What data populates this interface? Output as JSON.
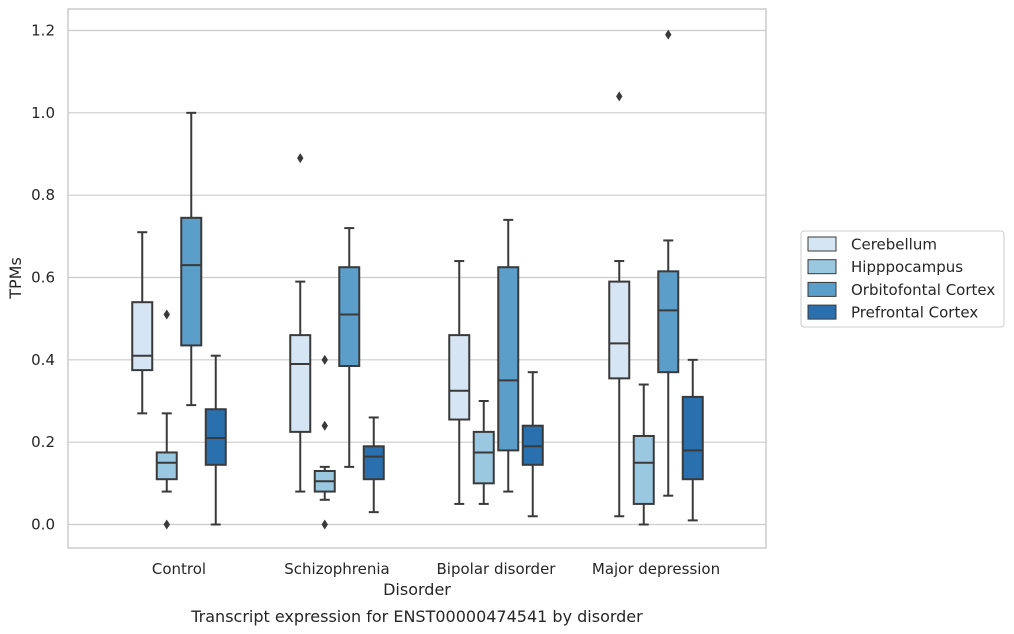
{
  "chart_data": {
    "type": "box",
    "caption": "Transcript expression for ENST00000474541 by disorder",
    "xlabel": "Disorder",
    "ylabel": "TPMs",
    "ylim": [
      -0.055,
      1.25
    ],
    "yticks": [
      0.0,
      0.2,
      0.4,
      0.6,
      0.8,
      1.0,
      1.2
    ],
    "grid": "horizontal",
    "legend_position": "right",
    "categories": [
      "Control",
      "Schizophrenia",
      "Bipolar disorder",
      "Major depression"
    ],
    "series": [
      {
        "name": "Cerebellum",
        "color": "#d6e5f4",
        "boxes": [
          {
            "whislo": 0.27,
            "q1": 0.375,
            "med": 0.41,
            "q3": 0.54,
            "whishi": 0.71,
            "fliers": []
          },
          {
            "whislo": 0.08,
            "q1": 0.225,
            "med": 0.39,
            "q3": 0.46,
            "whishi": 0.59,
            "fliers": [
              0.89
            ]
          },
          {
            "whislo": 0.05,
            "q1": 0.255,
            "med": 0.325,
            "q3": 0.46,
            "whishi": 0.64,
            "fliers": []
          },
          {
            "whislo": 0.02,
            "q1": 0.355,
            "med": 0.44,
            "q3": 0.59,
            "whishi": 0.64,
            "fliers": [
              1.04
            ]
          }
        ]
      },
      {
        "name": "Hipppocampus",
        "color": "#9ac8e0",
        "boxes": [
          {
            "whislo": 0.08,
            "q1": 0.11,
            "med": 0.15,
            "q3": 0.175,
            "whishi": 0.27,
            "fliers": [
              0.0,
              0.51
            ]
          },
          {
            "whislo": 0.06,
            "q1": 0.08,
            "med": 0.105,
            "q3": 0.13,
            "whishi": 0.14,
            "fliers": [
              0.0,
              0.24,
              0.4
            ]
          },
          {
            "whislo": 0.05,
            "q1": 0.1,
            "med": 0.175,
            "q3": 0.225,
            "whishi": 0.3,
            "fliers": []
          },
          {
            "whislo": 0.0,
            "q1": 0.05,
            "med": 0.15,
            "q3": 0.215,
            "whishi": 0.34,
            "fliers": []
          }
        ]
      },
      {
        "name": "Orbitofontal Cortex",
        "color": "#5b9ec9",
        "boxes": [
          {
            "whislo": 0.29,
            "q1": 0.435,
            "med": 0.63,
            "q3": 0.745,
            "whishi": 1.0,
            "fliers": []
          },
          {
            "whislo": 0.14,
            "q1": 0.385,
            "med": 0.51,
            "q3": 0.625,
            "whishi": 0.72,
            "fliers": []
          },
          {
            "whislo": 0.08,
            "q1": 0.18,
            "med": 0.35,
            "q3": 0.625,
            "whishi": 0.74,
            "fliers": []
          },
          {
            "whislo": 0.07,
            "q1": 0.37,
            "med": 0.52,
            "q3": 0.615,
            "whishi": 0.69,
            "fliers": [
              1.19
            ]
          }
        ]
      },
      {
        "name": "Prefrontal Cortex",
        "color": "#2a6fae",
        "boxes": [
          {
            "whislo": 0.0,
            "q1": 0.145,
            "med": 0.21,
            "q3": 0.28,
            "whishi": 0.41,
            "fliers": []
          },
          {
            "whislo": 0.03,
            "q1": 0.11,
            "med": 0.165,
            "q3": 0.19,
            "whishi": 0.26,
            "fliers": []
          },
          {
            "whislo": 0.02,
            "q1": 0.145,
            "med": 0.19,
            "q3": 0.24,
            "whishi": 0.37,
            "fliers": []
          },
          {
            "whislo": 0.01,
            "q1": 0.11,
            "med": 0.18,
            "q3": 0.31,
            "whishi": 0.4,
            "fliers": []
          }
        ]
      }
    ]
  }
}
